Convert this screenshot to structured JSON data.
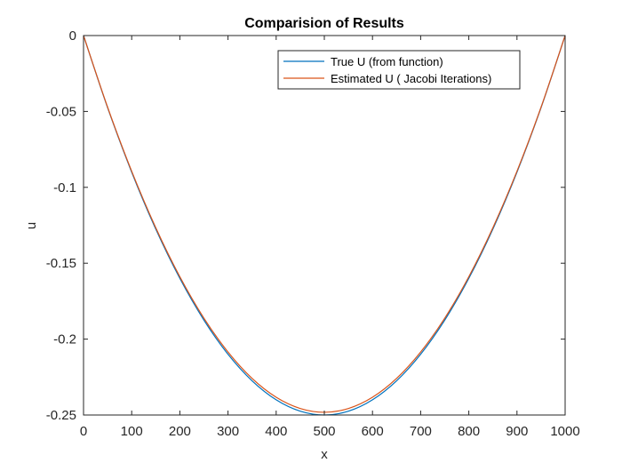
{
  "chart_data": {
    "type": "line",
    "title": "Comparision of Results",
    "xlabel": "x",
    "ylabel": "u",
    "xlim": [
      0,
      1000
    ],
    "ylim": [
      -0.25,
      0
    ],
    "xticks": [
      0,
      100,
      200,
      300,
      400,
      500,
      600,
      700,
      800,
      900,
      1000
    ],
    "yticks": [
      0,
      -0.05,
      -0.1,
      -0.15,
      -0.2,
      -0.25
    ],
    "xtick_labels": [
      "0",
      "100",
      "200",
      "300",
      "400",
      "500",
      "600",
      "700",
      "800",
      "900",
      "1000"
    ],
    "ytick_labels": [
      "0",
      "-0.05",
      "-0.1",
      "-0.15",
      "-0.2",
      "-0.25"
    ],
    "grid": false,
    "legend_position": "top-right",
    "series": [
      {
        "name": "True U (from function)",
        "color": "#0072BD",
        "x": [
          0,
          50,
          100,
          150,
          200,
          250,
          300,
          350,
          400,
          450,
          500,
          550,
          600,
          650,
          700,
          750,
          800,
          850,
          900,
          950,
          1000
        ],
        "y": [
          0,
          -0.0475,
          -0.09,
          -0.1275,
          -0.16,
          -0.1875,
          -0.21,
          -0.2275,
          -0.24,
          -0.2475,
          -0.25,
          -0.2475,
          -0.24,
          -0.2275,
          -0.21,
          -0.1875,
          -0.16,
          -0.1275,
          -0.09,
          -0.0475,
          0
        ]
      },
      {
        "name": "Estimated U ( Jacobi Iterations)",
        "color": "#D95319",
        "x": [
          0,
          50,
          100,
          150,
          200,
          250,
          300,
          350,
          400,
          450,
          500,
          550,
          600,
          650,
          700,
          750,
          800,
          850,
          900,
          950,
          1000
        ],
        "y": [
          0,
          -0.0472,
          -0.0894,
          -0.1266,
          -0.1589,
          -0.1862,
          -0.2085,
          -0.2259,
          -0.2383,
          -0.2457,
          -0.2482,
          -0.2457,
          -0.2383,
          -0.2259,
          -0.2085,
          -0.1862,
          -0.1589,
          -0.1266,
          -0.0894,
          -0.0472,
          0
        ]
      }
    ]
  }
}
